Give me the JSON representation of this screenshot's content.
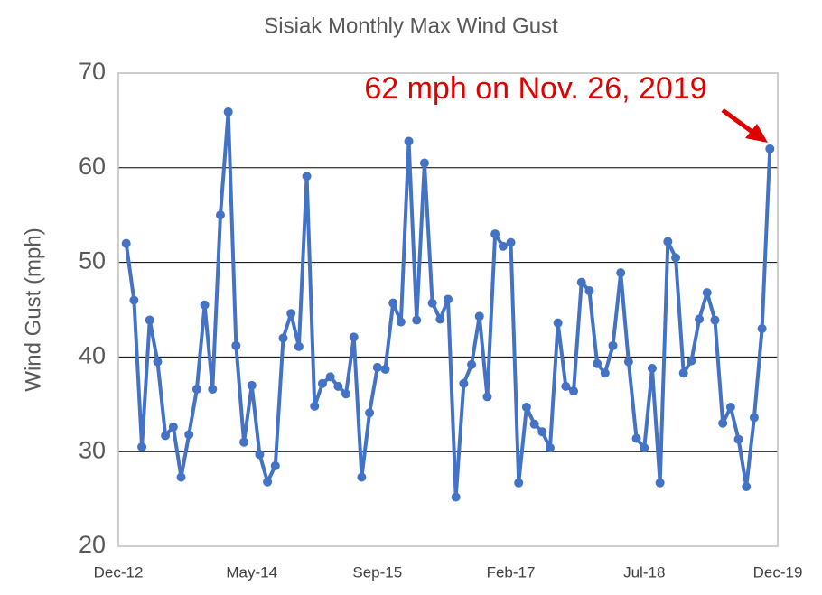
{
  "chart_data": {
    "type": "line",
    "title": "Sisiak Monthly Max Wind Gust",
    "y_label": "Wind Gust (mph)",
    "annotation": "62 mph on Nov. 26, 2019",
    "x": [
      "2013-01",
      "2013-02",
      "2013-03",
      "2013-04",
      "2013-05",
      "2013-06",
      "2013-07",
      "2013-08",
      "2013-09",
      "2013-10",
      "2013-11",
      "2013-12",
      "2014-01",
      "2014-02",
      "2014-03",
      "2014-04",
      "2014-05",
      "2014-06",
      "2014-07",
      "2014-08",
      "2014-09",
      "2014-10",
      "2014-11",
      "2014-12",
      "2015-01",
      "2015-02",
      "2015-03",
      "2015-04",
      "2015-05",
      "2015-06",
      "2015-07",
      "2015-08",
      "2015-09",
      "2015-10",
      "2015-11",
      "2015-12",
      "2016-01",
      "2016-02",
      "2016-03",
      "2016-04",
      "2016-05",
      "2016-06",
      "2016-07",
      "2016-08",
      "2016-09",
      "2016-10",
      "2016-11",
      "2016-12",
      "2017-01",
      "2017-02",
      "2017-03",
      "2017-04",
      "2017-05",
      "2017-06",
      "2017-07",
      "2017-08",
      "2017-09",
      "2017-10",
      "2017-11",
      "2017-12",
      "2018-01",
      "2018-02",
      "2018-03",
      "2018-04",
      "2018-05",
      "2018-06",
      "2018-07",
      "2018-08",
      "2018-09",
      "2018-10",
      "2018-11",
      "2018-12",
      "2019-01",
      "2019-02",
      "2019-03",
      "2019-04",
      "2019-05",
      "2019-06",
      "2019-07",
      "2019-08",
      "2019-09",
      "2019-10",
      "2019-11"
    ],
    "series": [
      {
        "name": "Wind Gust",
        "color": "#4472c4",
        "values": [
          52.0,
          46.0,
          30.5,
          43.9,
          39.5,
          31.7,
          32.6,
          27.3,
          31.8,
          36.6,
          45.5,
          36.6,
          55.0,
          65.9,
          41.2,
          31.0,
          37.0,
          29.7,
          26.8,
          28.5,
          42.0,
          44.6,
          41.1,
          59.1,
          34.8,
          37.2,
          37.9,
          36.9,
          36.1,
          42.1,
          27.3,
          34.1,
          38.9,
          38.7,
          45.7,
          43.7,
          62.8,
          43.9,
          60.5,
          45.7,
          44.0,
          46.1,
          25.2,
          37.2,
          39.2,
          44.3,
          35.8,
          53.0,
          51.7,
          52.1,
          26.7,
          34.7,
          32.9,
          32.1,
          30.4,
          43.6,
          36.9,
          36.4,
          47.9,
          47.0,
          39.3,
          38.3,
          41.2,
          48.9,
          39.5,
          31.4,
          30.4,
          38.8,
          26.7,
          52.2,
          50.5,
          38.3,
          39.6,
          44.0,
          46.8,
          43.9,
          33.0,
          34.7,
          31.3,
          26.3,
          33.6,
          43.0,
          62
        ]
      }
    ],
    "xlim": [
      "2012-12",
      "2019-12"
    ],
    "xticks": [
      {
        "value": "2012-12",
        "label": "Dec-12"
      },
      {
        "value": "2014-05",
        "label": "May-14"
      },
      {
        "value": "2015-09",
        "label": "Sep-15"
      },
      {
        "value": "2017-02",
        "label": "Feb-17"
      },
      {
        "value": "2018-07",
        "label": "Jul-18"
      },
      {
        "value": "2019-12",
        "label": "Dec-19"
      }
    ],
    "ylim": [
      20,
      70
    ],
    "yticks": [
      20,
      30,
      40,
      50,
      60,
      70
    ],
    "grid": true
  }
}
